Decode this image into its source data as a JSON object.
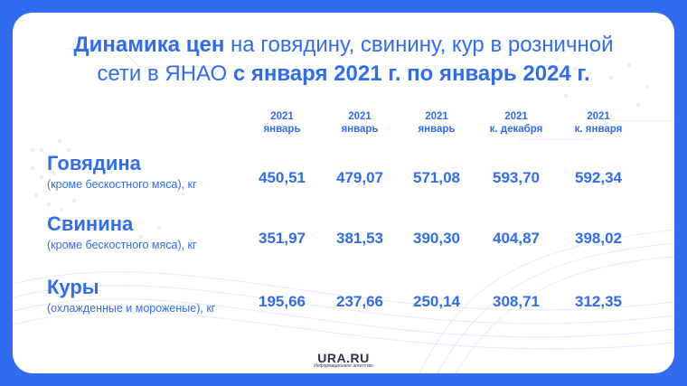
{
  "title": {
    "part1": "Динамика цен",
    "part2": " на говядину, свинину, кур в розничной",
    "part3": "сети в ЯНАО ",
    "part4": "с января 2021 г. по январь 2024 г."
  },
  "chart_data": {
    "type": "table",
    "columns": [
      {
        "year": "2021",
        "label": "январь"
      },
      {
        "year": "2021",
        "label": "январь"
      },
      {
        "year": "2021",
        "label": "январь"
      },
      {
        "year": "2021",
        "label": "к. декабря"
      },
      {
        "year": "2021",
        "label": "к. января"
      }
    ],
    "rows": [
      {
        "name": "Говядина",
        "sub": "(кроме бескостного мяса), кг",
        "values": [
          "450,51",
          "479,07",
          "571,08",
          "593,70",
          "592,34"
        ]
      },
      {
        "name": "Свинина",
        "sub": "(кроме бескостного мяса), кг",
        "values": [
          "351,97",
          "381,53",
          "390,30",
          "404,87",
          "398,02"
        ]
      },
      {
        "name": "Куры",
        "sub": "(охлажденные и мороженые), кг",
        "values": [
          "195,66",
          "237,66",
          "250,14",
          "308,71",
          "312,35"
        ]
      }
    ]
  },
  "logo": {
    "text": "URA.RU",
    "subtext": "Информационное агентство"
  },
  "colors": {
    "accent": "#2f6cf0",
    "background": "#ffffff",
    "logo": "#2a3250"
  }
}
